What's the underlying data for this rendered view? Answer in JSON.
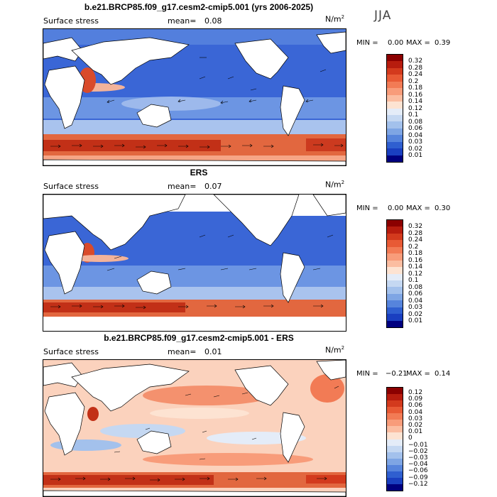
{
  "season": "JJA",
  "panels": [
    {
      "title": "b.e21.BRCP85.f09_g17.cesm2-cmip5.001 (yrs 2006-2025)",
      "variable": "Surface stress",
      "mean_label": "mean=",
      "mean_value": "0.08",
      "units": "N/m",
      "units_sup": "2",
      "min_label": "MIN =",
      "min_value": "0.00",
      "max_label": "MAX =",
      "max_value": "0.39",
      "levels": [
        "0.32",
        "0.28",
        "0.24",
        "0.2",
        "0.18",
        "0.16",
        "0.14",
        "0.12",
        "0.1",
        "0.08",
        "0.06",
        "0.04",
        "0.03",
        "0.02",
        "0.01"
      ],
      "colors": [
        "#8b0000",
        "#b71c0e",
        "#d33a1d",
        "#e85a35",
        "#f27b55",
        "#f89c7a",
        "#fbbda1",
        "#fde3d2",
        "#e4ecf8",
        "#c5d8f2",
        "#a3c1ec",
        "#7ea5e4",
        "#5684dc",
        "#2f5fd0",
        "#1a3fc0",
        "#00007f"
      ]
    },
    {
      "title": "ERS",
      "variable": "Surface stress",
      "mean_label": "mean=",
      "mean_value": "0.07",
      "units": "N/m",
      "units_sup": "2",
      "min_label": "MIN =",
      "min_value": "0.00",
      "max_label": "MAX =",
      "max_value": "0.30",
      "levels": [
        "0.32",
        "0.28",
        "0.24",
        "0.2",
        "0.18",
        "0.16",
        "0.14",
        "0.12",
        "0.1",
        "0.08",
        "0.06",
        "0.04",
        "0.03",
        "0.02",
        "0.01"
      ],
      "colors": [
        "#8b0000",
        "#b71c0e",
        "#d33a1d",
        "#e85a35",
        "#f27b55",
        "#f89c7a",
        "#fbbda1",
        "#fde3d2",
        "#e4ecf8",
        "#c5d8f2",
        "#a3c1ec",
        "#7ea5e4",
        "#5684dc",
        "#2f5fd0",
        "#1a3fc0",
        "#00007f"
      ]
    },
    {
      "title": "b.e21.BRCP85.f09_g17.cesm2-cmip5.001 - ERS",
      "variable": "Surface stress",
      "mean_label": "mean=",
      "mean_value": "0.01",
      "units": "N/m",
      "units_sup": "2",
      "min_label": "MIN =",
      "min_value": "−0.21",
      "max_label": "MAX =",
      "max_value": "0.14",
      "levels": [
        "0.12",
        "0.09",
        "0.06",
        "0.04",
        "0.03",
        "0.02",
        "0.01",
        "0",
        "−0.01",
        "−0.02",
        "−0.03",
        "−0.04",
        "−0.06",
        "−0.09",
        "−0.12"
      ],
      "colors": [
        "#8b0000",
        "#b71c0e",
        "#d33a1d",
        "#e85a35",
        "#f27b55",
        "#f89c7a",
        "#fbbda1",
        "#fde3d2",
        "#e4ecf8",
        "#c5d8f2",
        "#a3c1ec",
        "#7ea5e4",
        "#5684dc",
        "#2f5fd0",
        "#1a3fc0",
        "#00007f"
      ]
    }
  ]
}
